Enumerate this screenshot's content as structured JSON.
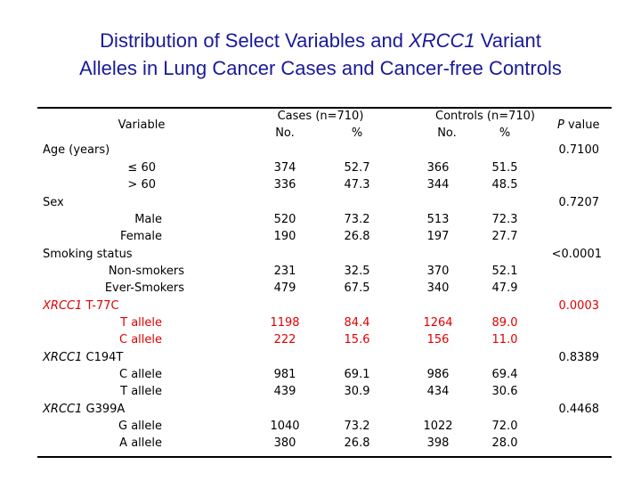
{
  "title": {
    "line1_pre": "Distribution of Select Variables and ",
    "line1_gene": "XRCC1",
    "line1_post": " Variant",
    "line2": "Alleles in Lung Cancer Cases and Cancer-free Controls"
  },
  "colors": {
    "title": "#1a1a99",
    "highlight": "#e00000"
  },
  "header": {
    "variable": "Variable",
    "cases": "Cases (n=710)",
    "controls": "Controls (n=710)",
    "no": "No.",
    "pct": "%",
    "p_italic": "P",
    "p_rest": " value"
  },
  "groups": [
    {
      "label": "Age (years)",
      "p": "0.7100",
      "rows": [
        {
          "label": "≤ 60",
          "cases_no": "374",
          "cases_pct": "52.7",
          "controls_no": "366",
          "controls_pct": "51.5"
        },
        {
          "label": "> 60",
          "cases_no": "336",
          "cases_pct": "47.3",
          "controls_no": "344",
          "controls_pct": "48.5"
        }
      ]
    },
    {
      "label": "Sex",
      "p": "0.7207",
      "rows": [
        {
          "label": "Male",
          "cases_no": "520",
          "cases_pct": "73.2",
          "controls_no": "513",
          "controls_pct": "72.3"
        },
        {
          "label": "Female",
          "cases_no": "190",
          "cases_pct": "26.8",
          "controls_no": "197",
          "controls_pct": "27.7"
        }
      ]
    },
    {
      "label": "Smoking status",
      "p": "<0.0001",
      "rows": [
        {
          "label": "Non-smokers",
          "cases_no": "231",
          "cases_pct": "32.5",
          "controls_no": "370",
          "controls_pct": "52.1"
        },
        {
          "label": "Ever-Smokers",
          "cases_no": "479",
          "cases_pct": "67.5",
          "controls_no": "340",
          "controls_pct": "47.9"
        }
      ]
    },
    {
      "label_gene": "XRCC1",
      "label_rest": " T-77C",
      "p": "0.0003",
      "highlight": true,
      "rows": [
        {
          "label": "T allele",
          "cases_no": "1198",
          "cases_pct": "84.4",
          "controls_no": "1264",
          "controls_pct": "89.0"
        },
        {
          "label": "C allele",
          "cases_no": "222",
          "cases_pct": "15.6",
          "controls_no": "156",
          "controls_pct": "11.0"
        }
      ]
    },
    {
      "label_gene": "XRCC1",
      "label_rest": " C194T",
      "p": "0.8389",
      "rows": [
        {
          "label": "C allele",
          "cases_no": "981",
          "cases_pct": "69.1",
          "controls_no": "986",
          "controls_pct": "69.4"
        },
        {
          "label": "T allele",
          "cases_no": "439",
          "cases_pct": "30.9",
          "controls_no": "434",
          "controls_pct": "30.6"
        }
      ]
    },
    {
      "label_gene": "XRCC1",
      "label_rest": " G399A",
      "p": "0.4468",
      "rows": [
        {
          "label": "G allele",
          "cases_no": "1040",
          "cases_pct": "73.2",
          "controls_no": "1022",
          "controls_pct": "72.0"
        },
        {
          "label": "A allele",
          "cases_no": "380",
          "cases_pct": "26.8",
          "controls_no": "398",
          "controls_pct": "28.0"
        }
      ]
    }
  ]
}
